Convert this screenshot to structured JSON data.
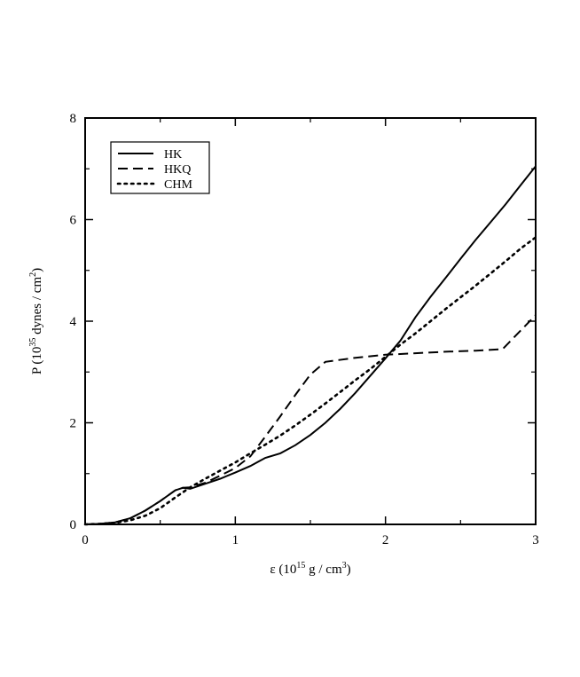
{
  "chart_data": {
    "type": "line",
    "title": "",
    "xlabel": {
      "prefix": "ε (10",
      "sup": "15",
      "mid": " g / cm",
      "sup2": "3",
      "suffix": ")"
    },
    "ylabel": {
      "prefix": "P (10",
      "sup": "35",
      "mid": " dynes / cm",
      "sup2": "2",
      "suffix": ")"
    },
    "xlim": [
      0,
      3
    ],
    "ylim": [
      0,
      8
    ],
    "xticks": [
      0,
      1,
      2,
      3
    ],
    "yticks": [
      0,
      2,
      4,
      6,
      8
    ],
    "xtick_labels": [
      "0",
      "1",
      "2",
      "3"
    ],
    "ytick_labels": [
      "0",
      "2",
      "4",
      "6",
      "8"
    ],
    "grid": false,
    "legend_position": "top-left",
    "series": [
      {
        "name": "HK",
        "style": "solid",
        "x": [
          0,
          0.1,
          0.2,
          0.3,
          0.4,
          0.5,
          0.6,
          0.65,
          0.7,
          0.8,
          0.9,
          1.0,
          1.1,
          1.15,
          1.2,
          1.3,
          1.4,
          1.5,
          1.6,
          1.7,
          1.8,
          1.9,
          2.0,
          2.1,
          2.2,
          2.3,
          2.4,
          2.5,
          2.6,
          2.7,
          2.8,
          2.9,
          3.0
        ],
        "y": [
          0,
          0.01,
          0.04,
          0.12,
          0.27,
          0.46,
          0.67,
          0.72,
          0.7,
          0.8,
          0.9,
          1.02,
          1.15,
          1.23,
          1.31,
          1.4,
          1.56,
          1.76,
          2.0,
          2.28,
          2.59,
          2.93,
          3.27,
          3.62,
          4.08,
          4.48,
          4.85,
          5.23,
          5.6,
          5.95,
          6.3,
          6.68,
          7.05
        ]
      },
      {
        "name": "HKQ",
        "style": "dashed",
        "x": [
          0,
          0.1,
          0.2,
          0.3,
          0.4,
          0.5,
          0.6,
          0.65,
          0.7,
          0.8,
          0.9,
          1.0,
          1.1,
          1.2,
          1.3,
          1.4,
          1.5,
          1.6,
          1.8,
          2.0,
          2.2,
          2.4,
          2.6,
          2.78,
          3.0
        ],
        "y": [
          0,
          0.01,
          0.04,
          0.12,
          0.27,
          0.46,
          0.67,
          0.72,
          0.73,
          0.82,
          0.96,
          1.11,
          1.34,
          1.73,
          2.13,
          2.55,
          2.95,
          3.2,
          3.28,
          3.34,
          3.37,
          3.4,
          3.42,
          3.45,
          4.12
        ]
      },
      {
        "name": "CHM",
        "style": "dotted",
        "x": [
          0,
          0.1,
          0.2,
          0.3,
          0.4,
          0.5,
          0.6,
          0.7,
          0.8,
          0.9,
          1.0,
          1.1,
          1.2,
          1.3,
          1.4,
          1.5,
          1.6,
          1.7,
          1.8,
          1.9,
          2.0,
          2.1,
          2.2,
          2.3,
          2.4,
          2.5,
          2.6,
          2.7,
          2.8,
          2.9,
          3.0
        ],
        "y": [
          0,
          0.01,
          0.03,
          0.08,
          0.17,
          0.32,
          0.53,
          0.73,
          0.9,
          1.06,
          1.22,
          1.4,
          1.57,
          1.75,
          1.95,
          2.16,
          2.38,
          2.61,
          2.84,
          3.06,
          3.3,
          3.54,
          3.76,
          4.0,
          4.24,
          4.47,
          4.7,
          4.94,
          5.18,
          5.43,
          5.65
        ]
      }
    ]
  }
}
